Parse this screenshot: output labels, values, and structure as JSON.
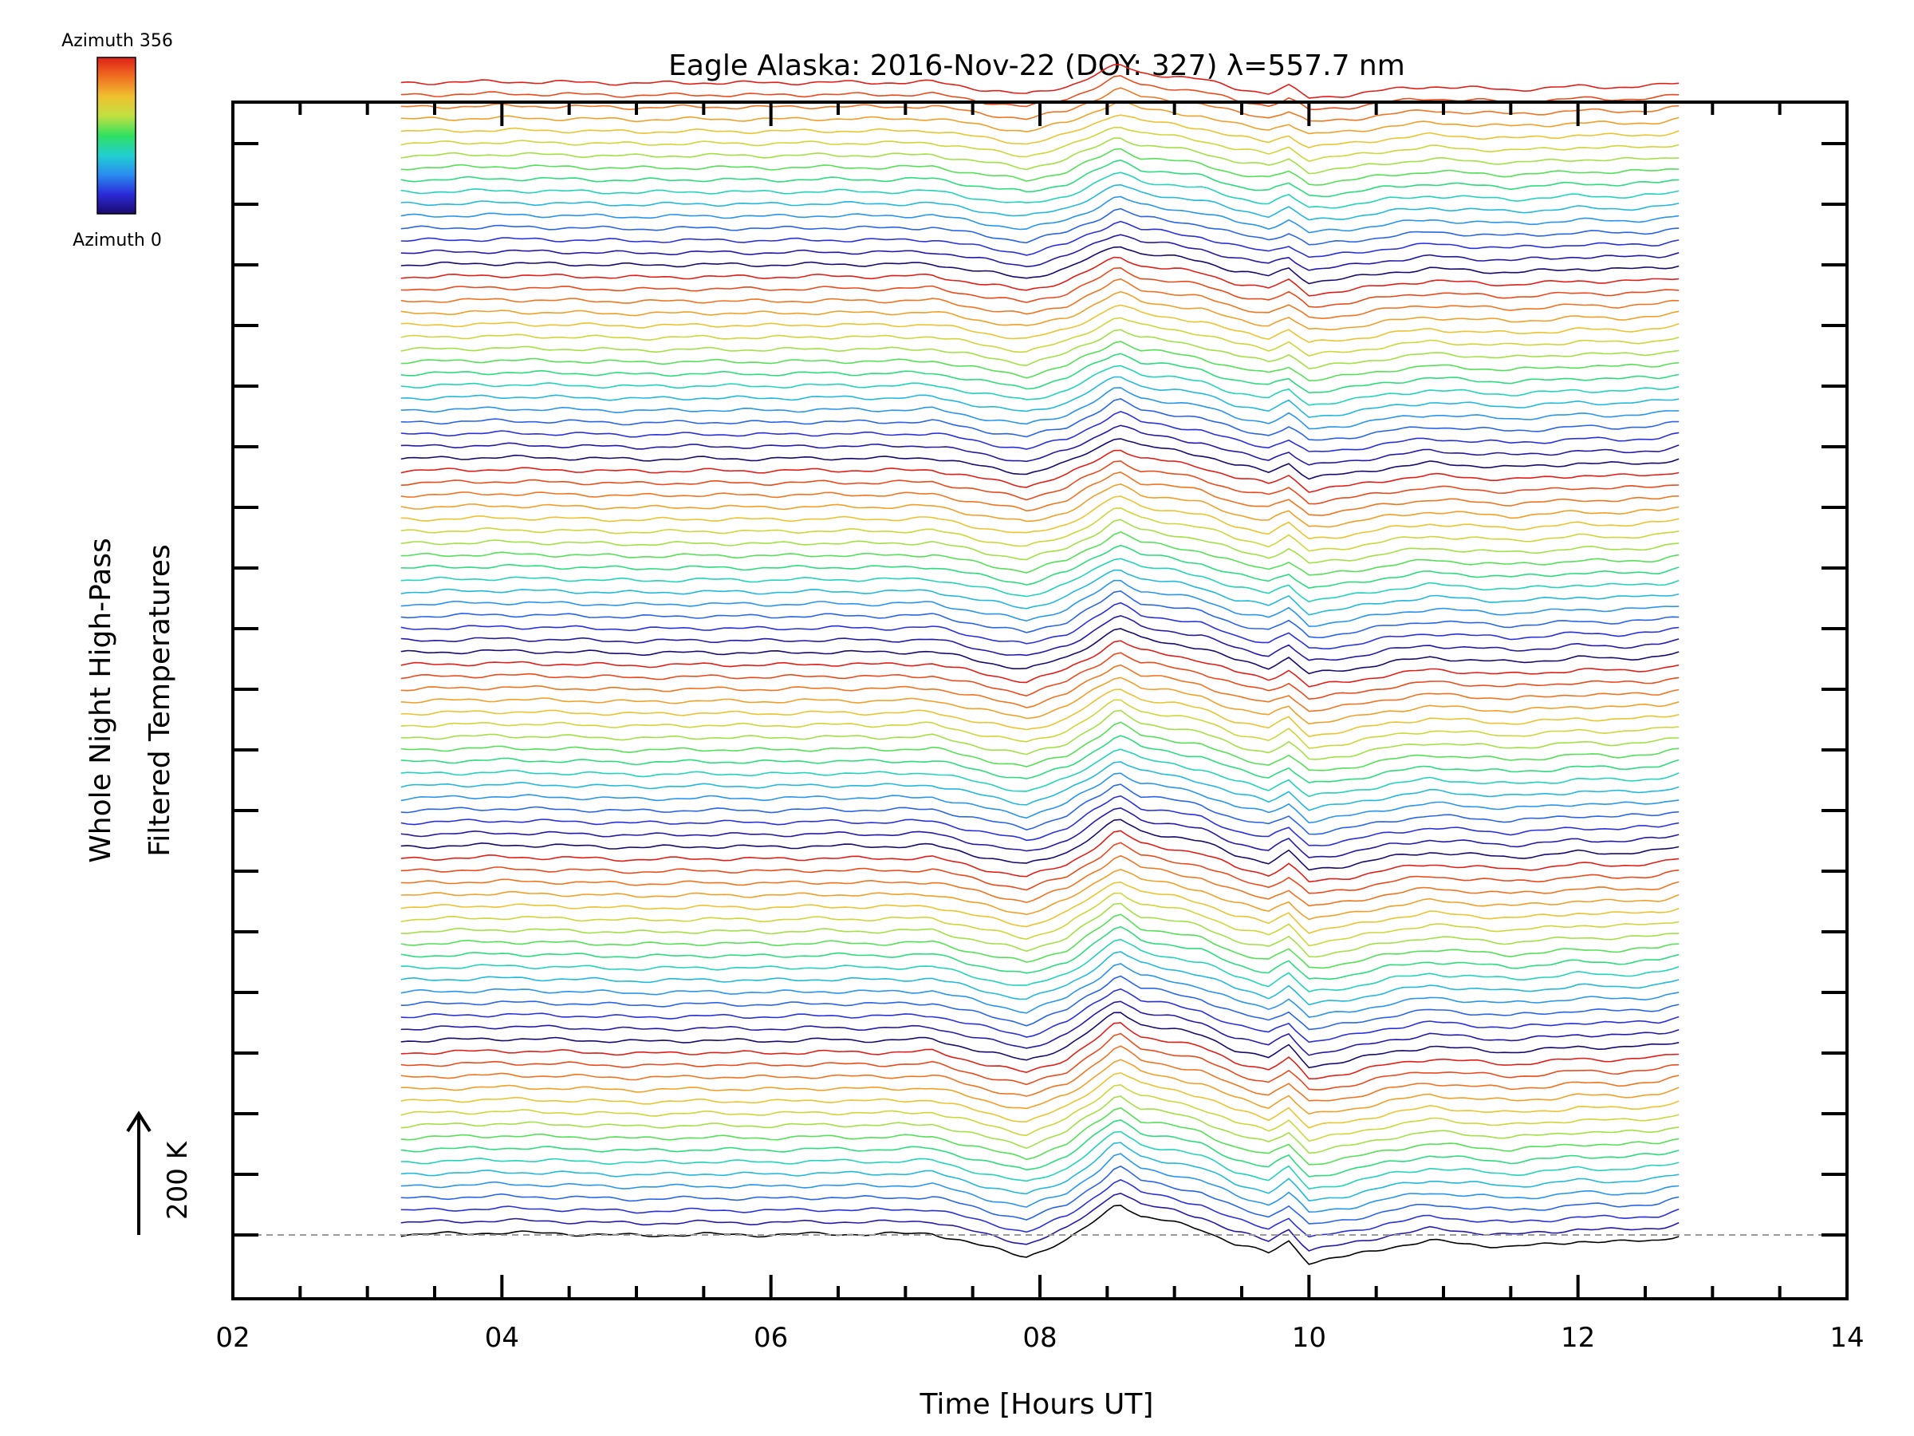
{
  "chart_data": {
    "type": "line",
    "title": "Eagle Alaska: 2016-Nov-22 (DOY: 327) λ=557.7 nm",
    "xlabel": "Time [Hours UT]",
    "ylabel_line1": "Whole Night High-Pass",
    "ylabel_line2": "Filtered Temperatures",
    "xlim": [
      2,
      14
    ],
    "x_ticks": [
      "02",
      "04",
      "06",
      "08",
      "10",
      "12",
      "14"
    ],
    "x_start": 3.25,
    "x_end": 12.75,
    "n_traces": 96,
    "trace_offset_K": 20,
    "scale_bar_label": "200 K",
    "colorbar": {
      "top_label": "Azimuth 356",
      "bottom_label": "Azimuth 0",
      "colormap": "rainbow",
      "stops": [
        "#1a0a6e",
        "#2a2ad8",
        "#2a8cf0",
        "#20d0d0",
        "#30e060",
        "#c0e040",
        "#f0c030",
        "#f07020",
        "#e02018"
      ]
    },
    "series_profile": {
      "x": [
        3.25,
        3.6,
        4.0,
        4.5,
        5.0,
        5.5,
        6.0,
        6.4,
        6.8,
        7.2,
        7.6,
        7.9,
        8.2,
        8.45,
        8.58,
        8.75,
        9.0,
        9.2,
        9.45,
        9.7,
        9.85,
        10.0,
        10.3,
        10.6,
        10.9,
        11.2,
        11.5,
        11.8,
        12.0,
        12.3,
        12.6,
        12.75
      ],
      "y_K": [
        0,
        2,
        4,
        2,
        -1,
        1,
        0,
        2,
        1,
        3,
        -20,
        -35,
        -10,
        30,
        55,
        30,
        20,
        10,
        -15,
        -30,
        -10,
        -45,
        -35,
        -20,
        -10,
        -15,
        -20,
        -15,
        -10,
        -12,
        -8,
        0
      ]
    }
  }
}
